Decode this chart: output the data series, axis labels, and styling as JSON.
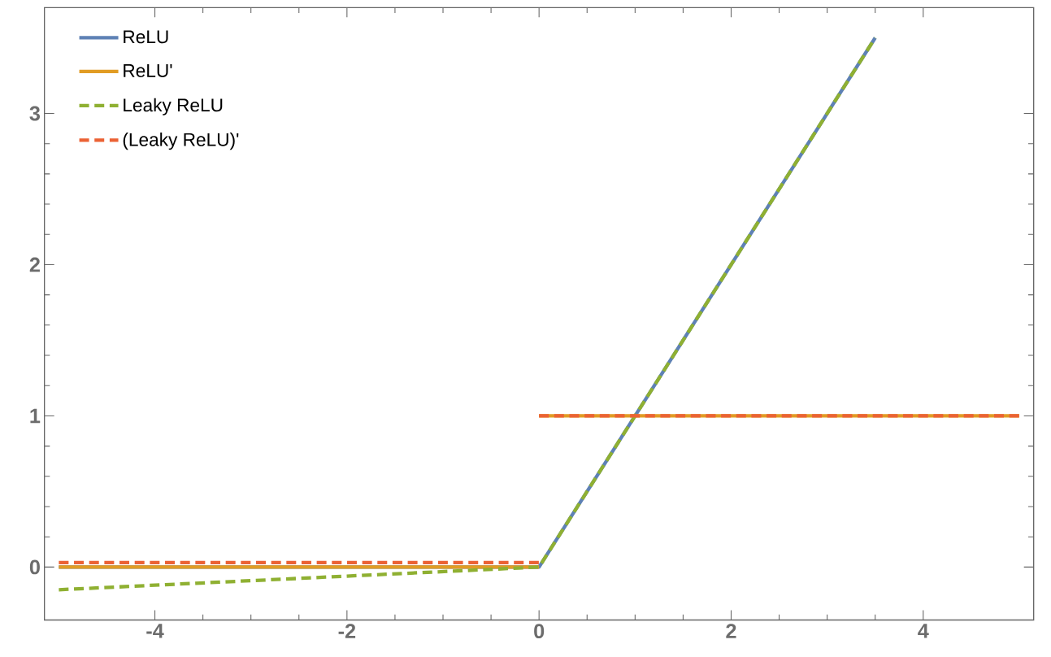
{
  "chart_data": {
    "type": "line",
    "xlim": [
      -5.15,
      5.15
    ],
    "ylim": [
      -0.35,
      3.7
    ],
    "xticks": [
      -4,
      -2,
      0,
      2,
      4
    ],
    "yticks": [
      0,
      1,
      2,
      3
    ],
    "grid": false,
    "legend": "top left",
    "marker": "none",
    "series": [
      {
        "name": "ReLU",
        "color": "#5e81b5",
        "line_style": "solid",
        "x": [
          -5,
          0,
          3.5
        ],
        "values": [
          0,
          0,
          3.5
        ]
      },
      {
        "name": "ReLU'",
        "color": "#e19c24",
        "line_style": "solid",
        "x": [
          -5,
          0
        ],
        "values": [
          0,
          0
        ]
      },
      {
        "color": "#e19c24",
        "line_style": "solid",
        "x": [
          0,
          5
        ],
        "values": [
          1,
          1
        ]
      },
      {
        "name": "Leaky ReLU",
        "color": "#8fb032",
        "line_style": "dashed",
        "x": [
          -5,
          0,
          3.5
        ],
        "values": [
          -0.15,
          0,
          3.5
        ]
      },
      {
        "name": "(Leaky ReLU)'",
        "color": "#eb6235",
        "line_style": "dashed",
        "x": [
          -5,
          0
        ],
        "values": [
          0.03,
          0.03
        ]
      },
      {
        "color": "#eb6235",
        "line_style": "dashed",
        "x": [
          0,
          5
        ],
        "values": [
          1,
          1
        ]
      }
    ]
  }
}
